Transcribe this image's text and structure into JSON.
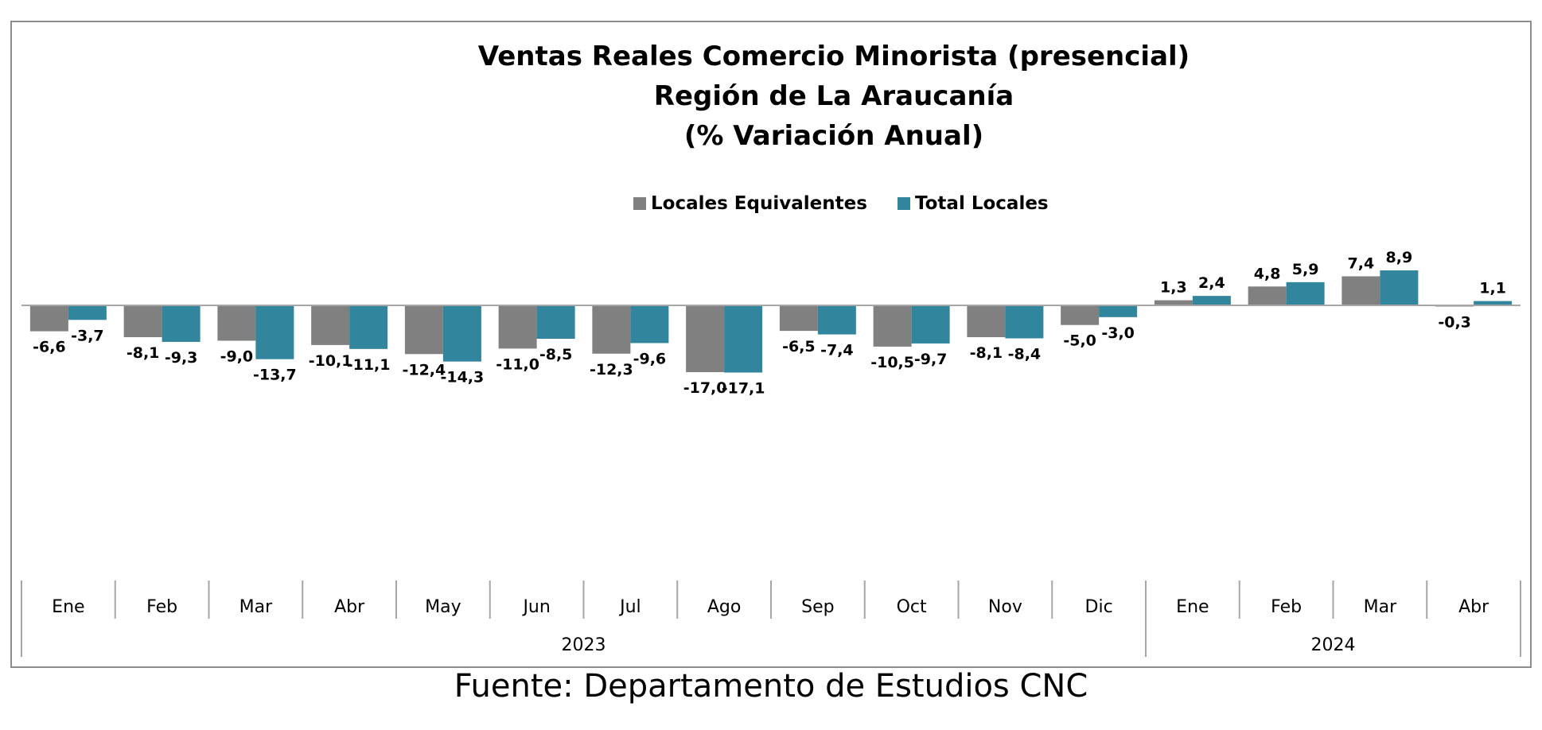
{
  "chart_data": {
    "type": "bar",
    "title": [
      "Ventas Reales Comercio Minorista (presencial)",
      "Región de La Araucanía",
      "(% Variación Anual)"
    ],
    "categories": [
      "Ene",
      "Feb",
      "Mar",
      "Abr",
      "May",
      "Jun",
      "Jul",
      "Ago",
      "Sep",
      "Oct",
      "Nov",
      "Dic",
      "Ene",
      "Feb",
      "Mar",
      "Abr"
    ],
    "groups": [
      {
        "label": "2023",
        "start": 0,
        "count": 12
      },
      {
        "label": "2024",
        "start": 12,
        "count": 4
      }
    ],
    "series": [
      {
        "name": "Locales Equivalentes",
        "color": "#808080",
        "values": [
          -6.6,
          -8.1,
          -9.0,
          -10.1,
          -12.4,
          -11.0,
          -12.3,
          -17.0,
          -6.5,
          -10.5,
          -8.1,
          -5.0,
          1.3,
          4.8,
          7.4,
          -0.3
        ],
        "labels": [
          "-6,6",
          "-8,1",
          "-9,0",
          "-10,1",
          "-12,4",
          "-11,0",
          "-12,3",
          "-17,0",
          "-6,5",
          "-10,5",
          "-8,1",
          "-5,0",
          "1,3",
          "4,8",
          "7,4",
          "-0,3"
        ]
      },
      {
        "name": "Total Locales",
        "color": "#31859C",
        "values": [
          -3.7,
          -9.3,
          -13.7,
          -11.1,
          -14.3,
          -8.5,
          -9.6,
          -17.1,
          -7.4,
          -9.7,
          -8.4,
          -3.0,
          2.4,
          5.9,
          8.9,
          1.1
        ],
        "labels": [
          "-3,7",
          "-9,3",
          "-13,7",
          "-11,1",
          "-14,3",
          "-8,5",
          "-9,6",
          "-17,1",
          "-7,4",
          "-9,7",
          "-8,4",
          "-3,0",
          "2,4",
          "5,9",
          "8,9",
          "1,1"
        ]
      }
    ],
    "legend_position": "top-center",
    "grid": false
  },
  "source": "Fuente: Departamento de Estudios CNC"
}
